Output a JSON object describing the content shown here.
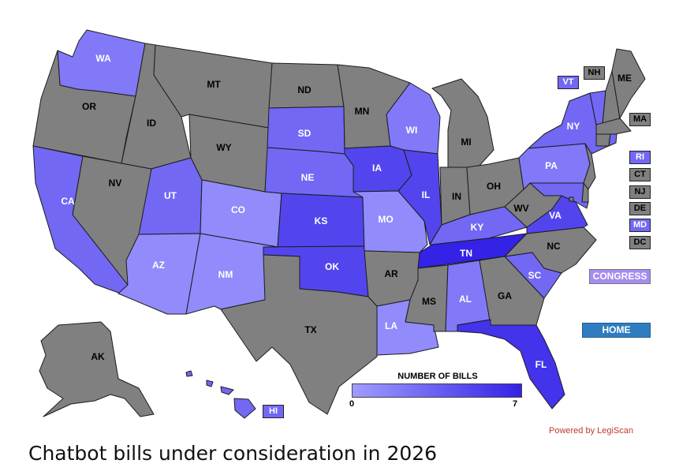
{
  "colors": {
    "none": "#808080",
    "legend_low": "#a09cff",
    "legend_high": "#3422e6",
    "button": "#a58cf0",
    "home": "#2f7dc0",
    "link": "#c0392b"
  },
  "states": {
    "WA": {
      "label": "WA",
      "bills": 2
    },
    "OR": {
      "label": "OR",
      "bills": 0
    },
    "CA": {
      "label": "CA",
      "bills": 3
    },
    "NV": {
      "label": "NV",
      "bills": 0
    },
    "ID": {
      "label": "ID",
      "bills": 0
    },
    "MT": {
      "label": "MT",
      "bills": 0
    },
    "WY": {
      "label": "WY",
      "bills": 0
    },
    "UT": {
      "label": "UT",
      "bills": 3
    },
    "AZ": {
      "label": "AZ",
      "bills": 1
    },
    "CO": {
      "label": "CO",
      "bills": 1
    },
    "NM": {
      "label": "NM",
      "bills": 1
    },
    "ND": {
      "label": "ND",
      "bills": 0
    },
    "SD": {
      "label": "SD",
      "bills": 3
    },
    "NE": {
      "label": "NE",
      "bills": 3
    },
    "KS": {
      "label": "KS",
      "bills": 5
    },
    "OK": {
      "label": "OK",
      "bills": 5
    },
    "TX": {
      "label": "TX",
      "bills": 0
    },
    "MN": {
      "label": "MN",
      "bills": 0
    },
    "IA": {
      "label": "IA",
      "bills": 5
    },
    "MO": {
      "label": "MO",
      "bills": 1
    },
    "AR": {
      "label": "AR",
      "bills": 0
    },
    "LA": {
      "label": "LA",
      "bills": 1
    },
    "WI": {
      "label": "WI",
      "bills": 2
    },
    "IL": {
      "label": "IL",
      "bills": 5
    },
    "MI": {
      "label": "MI",
      "bills": 0
    },
    "IN": {
      "label": "IN",
      "bills": 0
    },
    "OH": {
      "label": "OH",
      "bills": 0
    },
    "KY": {
      "label": "KY",
      "bills": 3
    },
    "TN": {
      "label": "TN",
      "bills": 7
    },
    "MS": {
      "label": "MS",
      "bills": 0
    },
    "AL": {
      "label": "AL",
      "bills": 2
    },
    "GA": {
      "label": "GA",
      "bills": 0
    },
    "FL": {
      "label": "FL",
      "bills": 6
    },
    "SC": {
      "label": "SC",
      "bills": 3
    },
    "NC": {
      "label": "NC",
      "bills": 0
    },
    "VA": {
      "label": "VA",
      "bills": 5
    },
    "WV": {
      "label": "WV",
      "bills": 0
    },
    "PA": {
      "label": "PA",
      "bills": 2
    },
    "NY": {
      "label": "NY",
      "bills": 3
    },
    "VT": {
      "label": "VT",
      "bills": 3
    },
    "NH": {
      "label": "NH",
      "bills": 0
    },
    "ME": {
      "label": "ME",
      "bills": 0
    },
    "MA": {
      "label": "MA",
      "bills": 0
    },
    "RI": {
      "label": "RI",
      "bills": 3
    },
    "CT": {
      "label": "CT",
      "bills": 0
    },
    "NJ": {
      "label": "NJ",
      "bills": 0
    },
    "DE": {
      "label": "DE",
      "bills": 0
    },
    "MD": {
      "label": "MD",
      "bills": 3
    },
    "DC": {
      "label": "DC",
      "bills": 0
    },
    "AK": {
      "label": "AK",
      "bills": 0
    },
    "HI": {
      "label": "HI",
      "bills": 3
    }
  },
  "legend": {
    "title": "NUMBER OF BILLS",
    "min": 0,
    "max": 7,
    "min_label": "0",
    "max_label": "7"
  },
  "buttons": {
    "congress": "CONGRESS",
    "home": "HOME"
  },
  "footer": {
    "powered_by": "Powered by LegiScan",
    "caption": "Chatbot bills under consideration in 2026"
  }
}
